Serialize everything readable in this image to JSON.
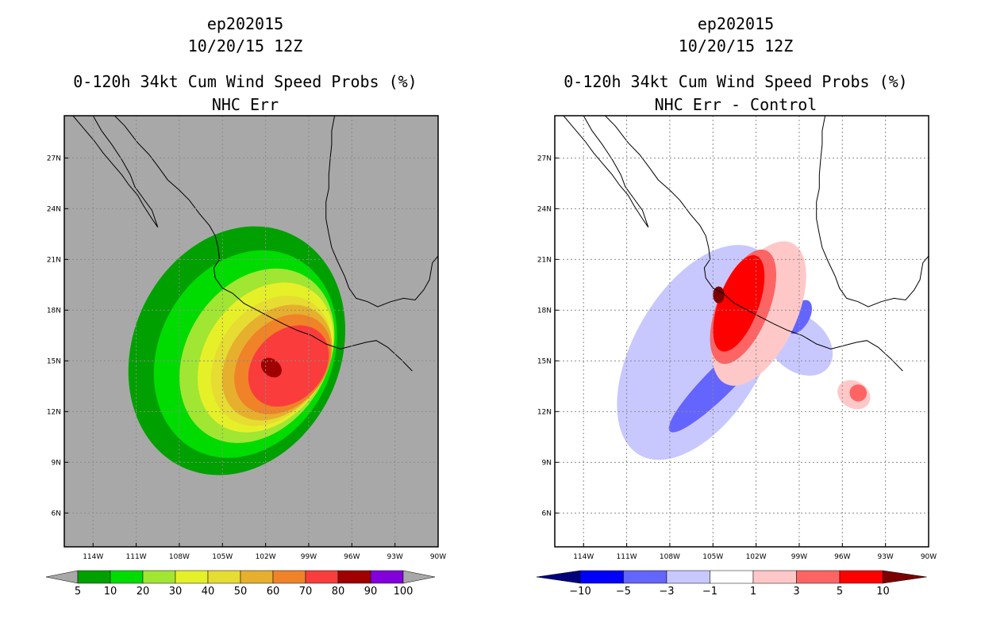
{
  "chart_data": [
    {
      "type": "heatmap",
      "storm_id": "ep202015",
      "valid_time": "10/20/15 12Z",
      "title": "0-120h 34kt Cum Wind Speed Probs (%)",
      "subtitle": "NHC Err",
      "xlim": [
        -116,
        -90
      ],
      "ylim": [
        4,
        29.5
      ],
      "x_ticks": [
        "114W",
        "111W",
        "108W",
        "105W",
        "102W",
        "99W",
        "96W",
        "93W",
        "90W"
      ],
      "y_ticks": [
        "6N",
        "9N",
        "12N",
        "15N",
        "18N",
        "21N",
        "24N",
        "27N"
      ],
      "background": "#a8a8a8",
      "colorbar": {
        "levels": [
          "5",
          "10",
          "20",
          "30",
          "40",
          "50",
          "60",
          "70",
          "80",
          "90",
          "100"
        ],
        "colors": [
          "#00a000",
          "#00dc00",
          "#a0e632",
          "#e6f028",
          "#e6dc32",
          "#e6af2d",
          "#f08228",
          "#fa3c3c",
          "#a00000",
          "#8200dc"
        ]
      },
      "contours": [
        {
          "level": 5,
          "center": [
            -104.0,
            15.6
          ],
          "rx": 7.2,
          "ry": 7.6,
          "tilt": 25
        },
        {
          "level": 10,
          "center": [
            -103.4,
            15.4
          ],
          "rx": 6.0,
          "ry": 6.4,
          "tilt": 28
        },
        {
          "level": 20,
          "center": [
            -102.6,
            15.3
          ],
          "rx": 4.9,
          "ry": 5.5,
          "tilt": 32
        },
        {
          "level": 30,
          "center": [
            -102.0,
            15.2
          ],
          "rx": 4.2,
          "ry": 4.8,
          "tilt": 35
        },
        {
          "level": 40,
          "center": [
            -101.6,
            15.0
          ],
          "rx": 3.7,
          "ry": 4.2,
          "tilt": 37
        },
        {
          "level": 50,
          "center": [
            -101.2,
            14.9
          ],
          "rx": 3.3,
          "ry": 3.8,
          "tilt": 40
        },
        {
          "level": 60,
          "center": [
            -100.8,
            14.8
          ],
          "rx": 2.9,
          "ry": 3.3,
          "tilt": 42
        },
        {
          "level": 70,
          "center": [
            -100.4,
            14.7
          ],
          "rx": 2.4,
          "ry": 2.7,
          "tilt": 44
        },
        {
          "level": 80,
          "center": [
            -101.6,
            14.6
          ],
          "rx": 0.8,
          "ry": 0.5,
          "tilt": 40
        }
      ]
    },
    {
      "type": "heatmap",
      "storm_id": "ep202015",
      "valid_time": "10/20/15 12Z",
      "title": "0-120h 34kt Cum Wind Speed Probs (%)",
      "subtitle": "NHC Err - Control",
      "xlim": [
        -116,
        -90
      ],
      "ylim": [
        4,
        29.5
      ],
      "x_ticks": [
        "114W",
        "111W",
        "108W",
        "105W",
        "102W",
        "99W",
        "96W",
        "93W",
        "90W"
      ],
      "y_ticks": [
        "6N",
        "9N",
        "12N",
        "15N",
        "18N",
        "21N",
        "24N",
        "27N"
      ],
      "background": "#ffffff",
      "colorbar": {
        "levels": [
          "-10",
          "-5",
          "-3",
          "-1",
          "1",
          "3",
          "5",
          "10"
        ],
        "colors": [
          "#00007d",
          "#0000ff",
          "#6464ff",
          "#c8c8ff",
          "#ffffff",
          "#ffc8c8",
          "#ff6464",
          "#ff0000",
          "#7d0000"
        ]
      },
      "contours": [
        {
          "level": -1,
          "center": [
            -106.0,
            15.5
          ],
          "rx": 4.5,
          "ry": 7.0,
          "tilt": 30
        },
        {
          "level": -1,
          "center": [
            -99.0,
            16.0
          ],
          "rx": 2.6,
          "ry": 1.6,
          "tilt": 40
        },
        {
          "level": -3,
          "center": [
            -104.5,
            13.8
          ],
          "rx": 1.0,
          "ry": 4.2,
          "tilt": 45
        },
        {
          "level": -3,
          "center": [
            -99.0,
            17.6
          ],
          "rx": 0.7,
          "ry": 1.1,
          "tilt": 30
        },
        {
          "level": 1,
          "center": [
            -101.8,
            17.8
          ],
          "rx": 2.6,
          "ry": 4.6,
          "tilt": 25
        },
        {
          "level": 1,
          "center": [
            -95.2,
            13.0
          ],
          "rx": 1.2,
          "ry": 0.8,
          "tilt": 30
        },
        {
          "level": 3,
          "center": [
            -102.9,
            18.2
          ],
          "rx": 1.8,
          "ry": 3.6,
          "tilt": 22
        },
        {
          "level": 3,
          "center": [
            -94.9,
            13.1
          ],
          "rx": 0.6,
          "ry": 0.5,
          "tilt": 30
        },
        {
          "level": 5,
          "center": [
            -103.2,
            18.4
          ],
          "rx": 1.4,
          "ry": 3.0,
          "tilt": 20
        },
        {
          "level": 10,
          "center": [
            -104.6,
            18.9
          ],
          "rx": 0.4,
          "ry": 0.5,
          "tilt": 0
        }
      ]
    }
  ]
}
